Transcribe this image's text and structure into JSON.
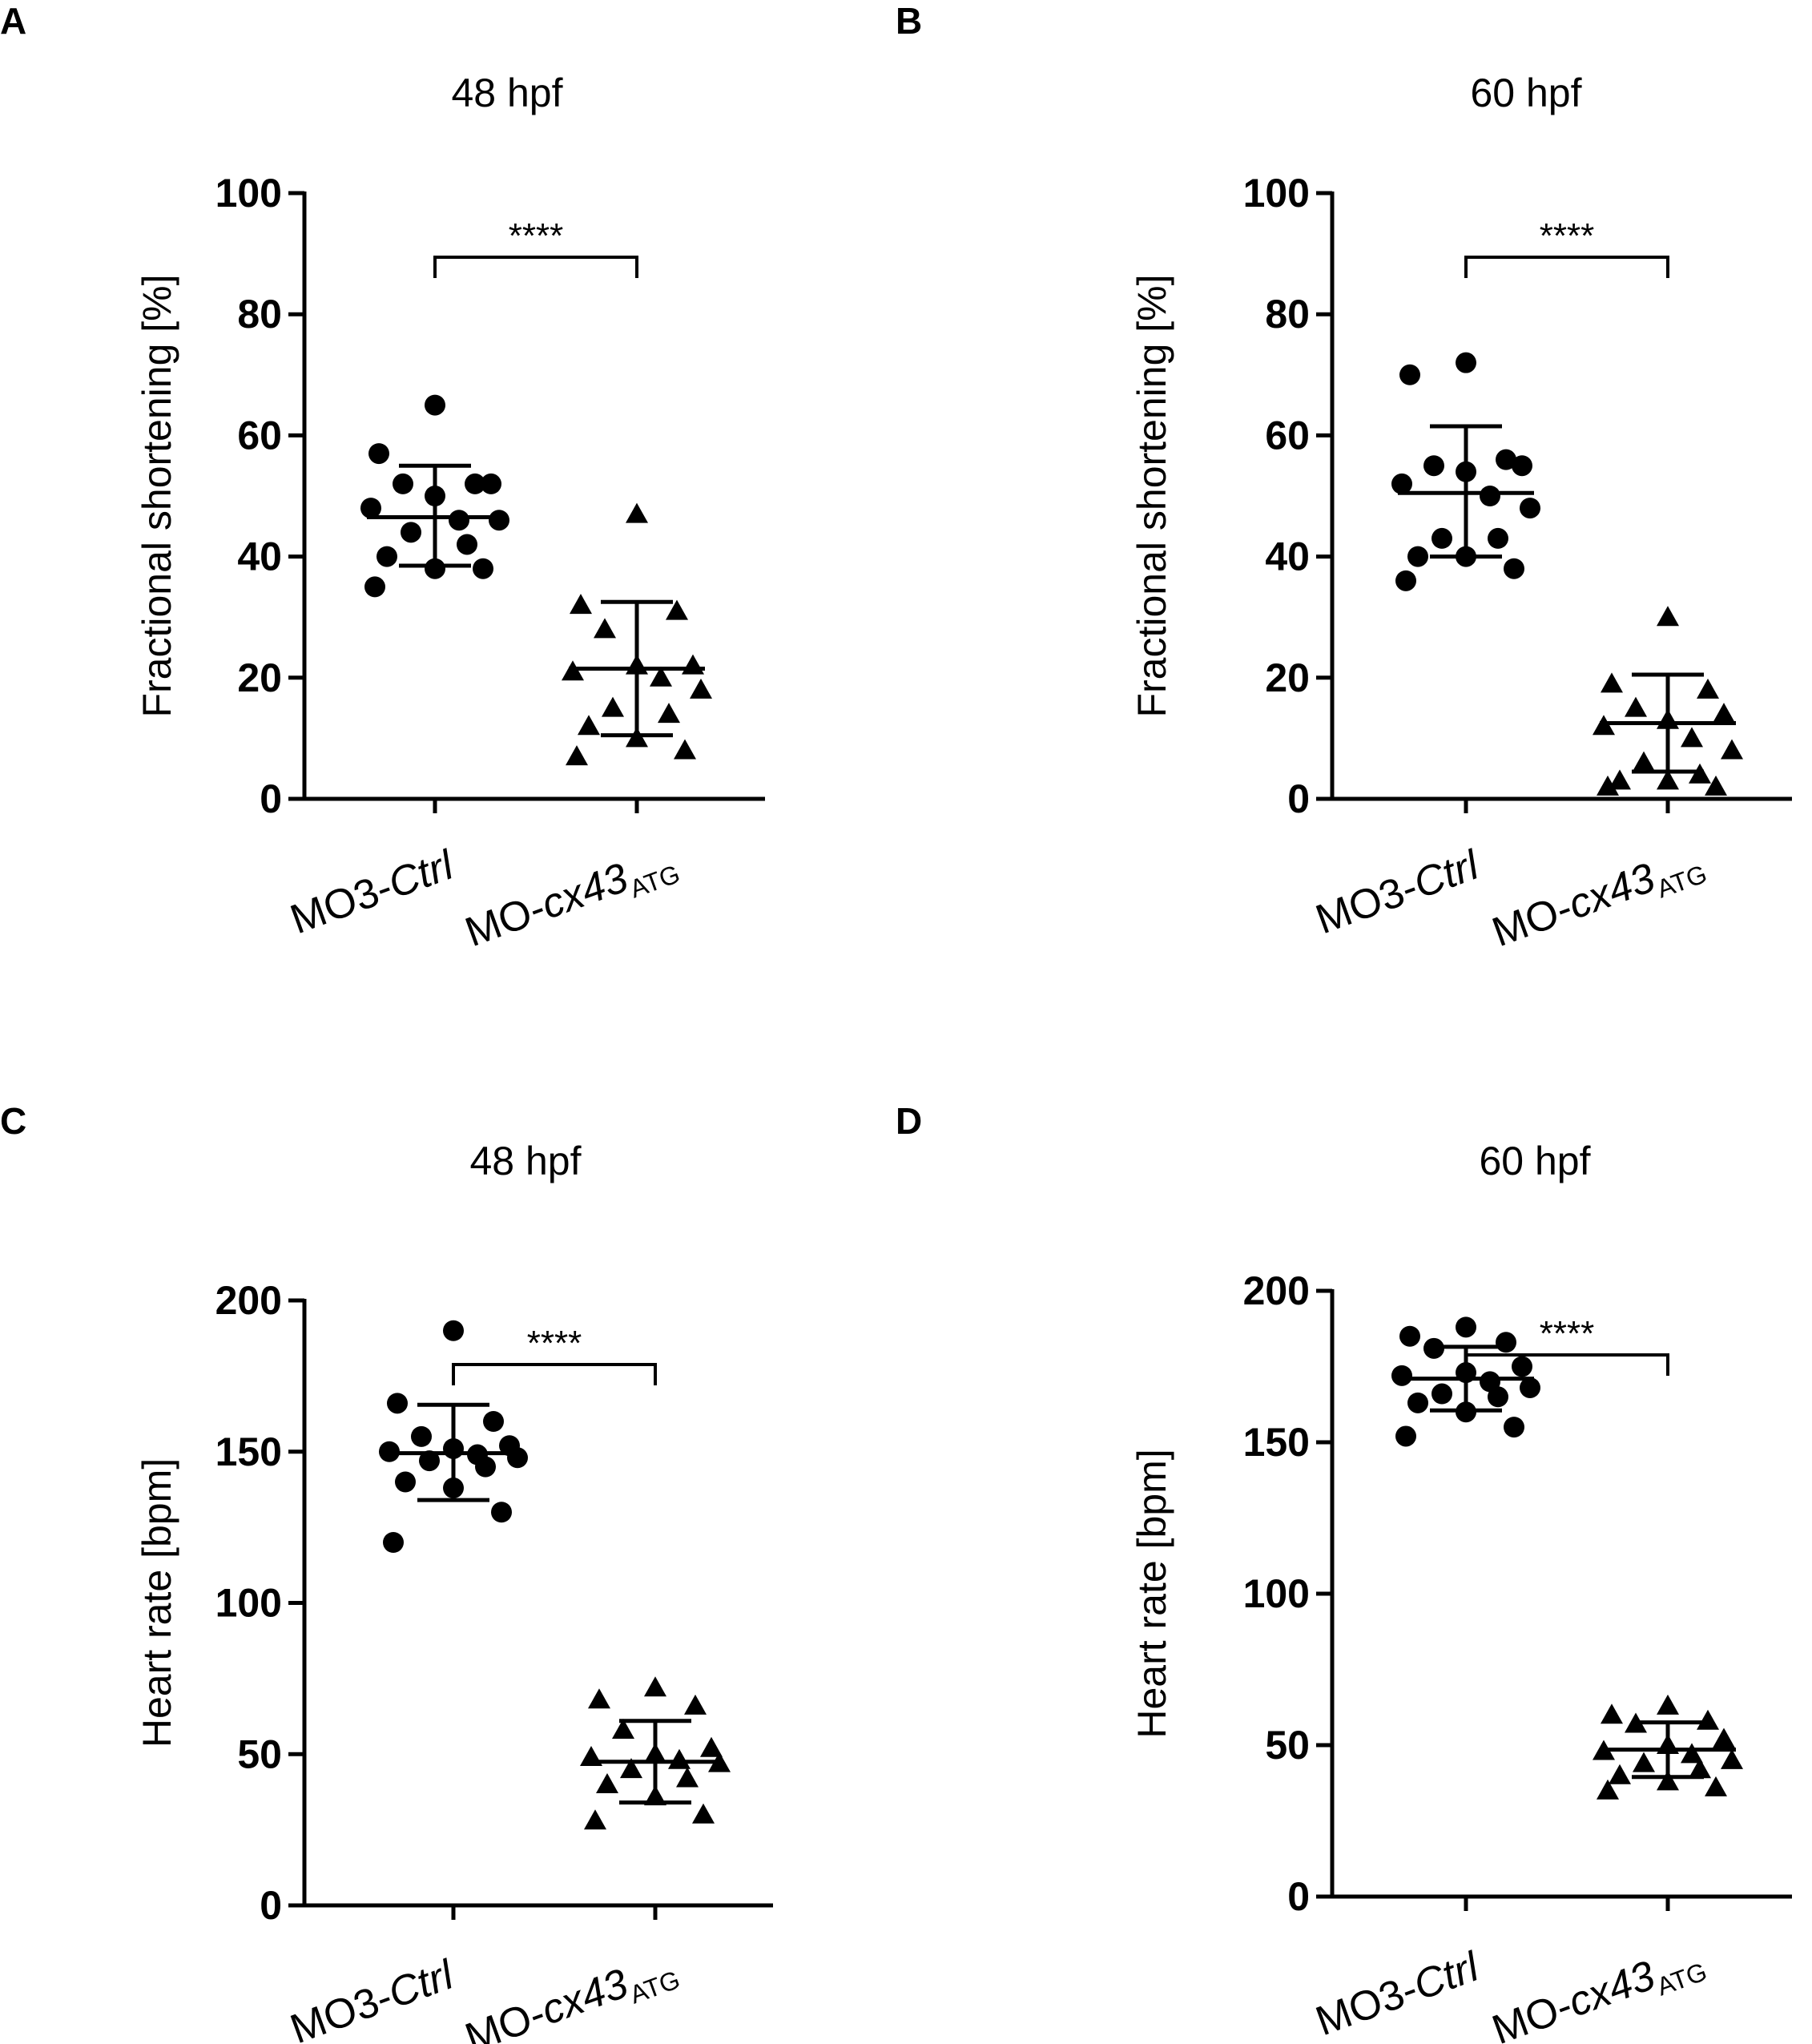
{
  "chart_data": [
    {
      "panel": "A",
      "type": "scatter",
      "title": "48 hpf",
      "ylabel": "Fractional shortening [%]",
      "ylim": [
        0,
        100
      ],
      "yticks": [
        "0",
        "20",
        "40",
        "60",
        "80",
        "100"
      ],
      "categories": [
        "MO3-Ctrl",
        "MO-cx43"
      ],
      "category_subscripts": [
        "",
        "ATG"
      ],
      "significance": "****",
      "series": [
        {
          "marker": "circle",
          "mean": 46.5,
          "sd_low": 38.5,
          "sd_high": 55,
          "values": [
            65,
            57,
            52,
            52,
            52,
            50,
            48,
            46,
            46,
            44,
            42,
            40,
            38,
            38,
            35
          ]
        },
        {
          "marker": "triangle",
          "mean": 21.5,
          "sd_low": 10.5,
          "sd_high": 32.5,
          "values": [
            47,
            32,
            31,
            28,
            22,
            22,
            21,
            20,
            18,
            15,
            14,
            12,
            10,
            8,
            7
          ]
        }
      ]
    },
    {
      "panel": "B",
      "type": "scatter",
      "title": "60 hpf",
      "ylabel": "Fractional shortening [%]",
      "ylim": [
        0,
        100
      ],
      "yticks": [
        "0",
        "20",
        "40",
        "60",
        "80",
        "100"
      ],
      "categories": [
        "MO3-Ctrl",
        "MO-cx43"
      ],
      "category_subscripts": [
        "",
        "ATG"
      ],
      "significance": "****",
      "series": [
        {
          "marker": "circle",
          "mean": 50.5,
          "sd_low": 40,
          "sd_high": 61.5,
          "values": [
            72,
            70,
            56,
            55,
            55,
            54,
            52,
            50,
            48,
            43,
            43,
            40,
            40,
            38,
            36
          ]
        },
        {
          "marker": "triangle",
          "mean": 12.5,
          "sd_low": 4.5,
          "sd_high": 20.5,
          "values": [
            30,
            19,
            18,
            15,
            14,
            13,
            12,
            10,
            8,
            6,
            4,
            3,
            3,
            2,
            2
          ]
        }
      ]
    },
    {
      "panel": "C",
      "type": "scatter",
      "title": "48 hpf",
      "ylabel": "Heart rate [bpm]",
      "ylim": [
        0,
        200
      ],
      "yticks": [
        "0",
        "50",
        "100",
        "150",
        "200"
      ],
      "categories": [
        "MO3-Ctrl",
        "MO-cx43"
      ],
      "category_subscripts": [
        "",
        "ATG"
      ],
      "significance": "****",
      "series": [
        {
          "marker": "circle",
          "mean": 149.5,
          "sd_low": 134,
          "sd_high": 165.5,
          "values": [
            190,
            166,
            160,
            155,
            152,
            151,
            150,
            149,
            148,
            147,
            145,
            140,
            138,
            130,
            120
          ]
        },
        {
          "marker": "triangle",
          "mean": 47.5,
          "sd_low": 34,
          "sd_high": 61,
          "values": [
            72,
            68,
            66,
            58,
            52,
            50,
            49,
            48,
            47,
            45,
            42,
            40,
            36,
            30,
            28
          ]
        }
      ]
    },
    {
      "panel": "D",
      "type": "scatter",
      "title": "60 hpf",
      "ylabel": "Heart rate [bpm]",
      "ylim": [
        0,
        200
      ],
      "yticks": [
        "0",
        "50",
        "100",
        "150",
        "200"
      ],
      "categories": [
        "MO3-Ctrl",
        "MO-cx43"
      ],
      "category_subscripts": [
        "",
        "ATG"
      ],
      "significance": "****",
      "series": [
        {
          "marker": "circle",
          "mean": 171,
          "sd_low": 160.5,
          "sd_high": 181.5,
          "values": [
            188,
            185,
            183,
            181,
            175,
            173,
            172,
            170,
            168,
            166,
            165,
            163,
            160,
            155,
            152
          ]
        },
        {
          "marker": "triangle",
          "mean": 48.5,
          "sd_low": 39.5,
          "sd_high": 57.5,
          "values": [
            63,
            60,
            58,
            57,
            52,
            50,
            48,
            47,
            45,
            44,
            42,
            40,
            38,
            36,
            35
          ]
        }
      ]
    }
  ]
}
